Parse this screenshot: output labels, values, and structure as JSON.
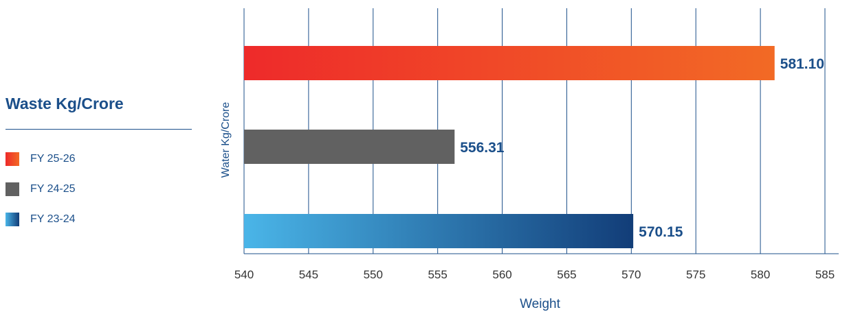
{
  "legend": {
    "title": "Waste Kg/Crore",
    "items": [
      {
        "label": "FY 25-26",
        "color_start": "#ee2a2a",
        "color_end": "#f26a25"
      },
      {
        "label": "FY 24-25",
        "color_start": "#616161",
        "color_end": "#616161"
      },
      {
        "label": "FY 23-24",
        "color_start": "#4ab5e8",
        "color_end": "#123d78"
      }
    ]
  },
  "chart_data": {
    "type": "bar",
    "orientation": "horizontal",
    "categories": [
      "FY 25-26",
      "FY 24-25",
      "FY 23-24"
    ],
    "values": [
      581.1,
      556.31,
      570.15
    ],
    "data_labels": [
      "581.10",
      "556.31",
      "570.15"
    ],
    "xlabel": "Weight",
    "ylabel": "Water Kg/Crore",
    "xlim": [
      540,
      585
    ],
    "xticks": [
      540,
      545,
      550,
      555,
      560,
      565,
      570,
      575,
      580,
      585
    ],
    "grid": "vertical",
    "colors": {
      "FY 25-26": [
        "#ee2a2a",
        "#f26a25"
      ],
      "FY 24-25": [
        "#616161",
        "#616161"
      ],
      "FY 23-24": [
        "#4ab5e8",
        "#123d78"
      ]
    },
    "axis_color": "#1b4f8a"
  }
}
